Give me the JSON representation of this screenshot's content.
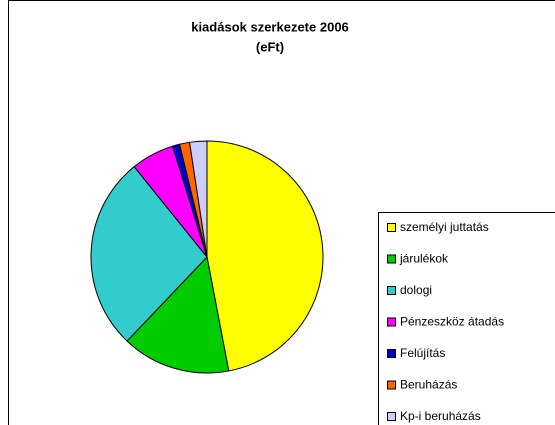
{
  "chart_data": {
    "type": "pie",
    "title": [
      "kiadások szerkezete 2006",
      "(eFt)"
    ],
    "categories": [
      "személyi juttatás",
      "járulékok",
      "dologi",
      "Pénzeszköz átadás",
      "Felújítás",
      "Beruházás",
      "Kp-i beruházás"
    ],
    "values": [
      47,
      15.1,
      27.1,
      6,
      1,
      1.4,
      2.4
    ],
    "colors": [
      "#ffff00",
      "#00cc00",
      "#33cccc",
      "#ff00ff",
      "#0000cc",
      "#ff6600",
      "#ccccff"
    ],
    "legend": "right"
  }
}
